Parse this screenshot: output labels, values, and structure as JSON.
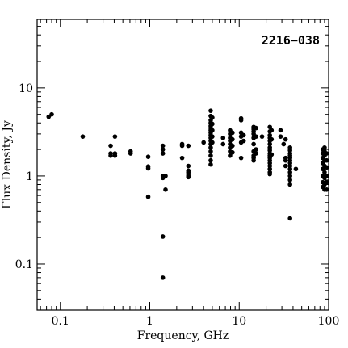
{
  "chart_data": {
    "type": "scatter",
    "title": "2216−038",
    "xlabel": "Frequency, GHz",
    "ylabel": "Flux Density, Jy",
    "xscale": "log",
    "yscale": "log",
    "xlim": [
      0.055,
      100
    ],
    "ylim": [
      0.03,
      60
    ],
    "x_tick_labels": [
      "0.1",
      "1",
      "10",
      "100"
    ],
    "y_tick_labels": [
      "0.1",
      "1",
      "10"
    ],
    "grid": false,
    "marker_color": "#000000",
    "series": [
      {
        "points": [
          [
            0.074,
            4.7
          ],
          [
            0.08,
            5.0
          ],
          [
            0.178,
            2.8
          ],
          [
            0.365,
            2.2
          ],
          [
            0.365,
            1.8
          ],
          [
            0.365,
            1.7
          ],
          [
            0.408,
            2.8
          ],
          [
            0.408,
            1.8
          ],
          [
            0.408,
            1.7
          ],
          [
            0.61,
            1.9
          ],
          [
            0.61,
            1.8
          ],
          [
            0.96,
            1.65
          ],
          [
            0.96,
            1.28
          ],
          [
            0.96,
            1.22
          ],
          [
            0.96,
            0.58
          ],
          [
            1.4,
            2.2
          ],
          [
            1.4,
            2.0
          ],
          [
            1.4,
            1.8
          ],
          [
            1.4,
            1.0
          ],
          [
            1.4,
            0.95
          ],
          [
            1.4,
            0.205
          ],
          [
            1.4,
            0.07
          ],
          [
            1.5,
            1.0
          ],
          [
            1.5,
            0.7
          ],
          [
            2.3,
            2.3
          ],
          [
            2.3,
            2.2
          ],
          [
            2.3,
            1.6
          ],
          [
            2.7,
            2.2
          ],
          [
            2.7,
            1.3
          ],
          [
            2.7,
            1.15
          ],
          [
            2.7,
            1.1
          ],
          [
            2.7,
            1.05
          ],
          [
            2.7,
            1.0
          ],
          [
            2.7,
            0.97
          ],
          [
            4.0,
            2.4
          ],
          [
            4.8,
            5.5
          ],
          [
            4.8,
            4.8
          ],
          [
            4.8,
            4.3
          ],
          [
            4.8,
            4.0
          ],
          [
            4.8,
            3.7
          ],
          [
            4.8,
            3.5
          ],
          [
            4.8,
            3.3
          ],
          [
            4.8,
            3.1
          ],
          [
            4.8,
            2.9
          ],
          [
            4.8,
            2.7
          ],
          [
            4.8,
            2.5
          ],
          [
            4.8,
            2.3
          ],
          [
            4.8,
            2.1
          ],
          [
            4.8,
            1.9
          ],
          [
            4.8,
            1.7
          ],
          [
            4.8,
            1.5
          ],
          [
            4.8,
            1.35
          ],
          [
            5.0,
            4.6
          ],
          [
            5.0,
            3.9
          ],
          [
            5.0,
            3.3
          ],
          [
            5.0,
            2.8
          ],
          [
            5.0,
            2.4
          ],
          [
            6.6,
            2.7
          ],
          [
            6.6,
            2.3
          ],
          [
            7.9,
            3.3
          ],
          [
            7.9,
            3.0
          ],
          [
            7.9,
            2.7
          ],
          [
            7.9,
            2.5
          ],
          [
            7.9,
            2.3
          ],
          [
            7.9,
            2.1
          ],
          [
            7.9,
            1.9
          ],
          [
            7.9,
            1.7
          ],
          [
            8.4,
            3.1
          ],
          [
            8.4,
            2.6
          ],
          [
            8.4,
            2.2
          ],
          [
            8.4,
            1.85
          ],
          [
            10.5,
            4.5
          ],
          [
            10.5,
            4.3
          ],
          [
            10.5,
            3.1
          ],
          [
            10.5,
            2.8
          ],
          [
            10.5,
            2.4
          ],
          [
            10.5,
            1.6
          ],
          [
            11.2,
            2.9
          ],
          [
            11.2,
            2.5
          ],
          [
            14.5,
            3.6
          ],
          [
            14.5,
            3.4
          ],
          [
            14.5,
            3.2
          ],
          [
            14.5,
            3.0
          ],
          [
            14.5,
            2.7
          ],
          [
            14.5,
            2.3
          ],
          [
            14.5,
            1.9
          ],
          [
            14.5,
            1.7
          ],
          [
            14.5,
            1.6
          ],
          [
            14.5,
            1.5
          ],
          [
            15.4,
            3.5
          ],
          [
            15.4,
            2.8
          ],
          [
            15.4,
            2.0
          ],
          [
            15.4,
            1.8
          ],
          [
            18.0,
            2.8
          ],
          [
            22.0,
            3.6
          ],
          [
            22.0,
            3.2
          ],
          [
            22.0,
            2.9
          ],
          [
            22.0,
            2.7
          ],
          [
            22.0,
            2.5
          ],
          [
            22.0,
            2.3
          ],
          [
            22.0,
            2.1
          ],
          [
            22.0,
            1.95
          ],
          [
            22.0,
            1.8
          ],
          [
            22.0,
            1.7
          ],
          [
            22.0,
            1.6
          ],
          [
            22.0,
            1.5
          ],
          [
            22.0,
            1.4
          ],
          [
            22.0,
            1.3
          ],
          [
            22.0,
            1.2
          ],
          [
            22.0,
            1.1
          ],
          [
            22.0,
            1.05
          ],
          [
            23.0,
            3.3
          ],
          [
            23.0,
            2.6
          ],
          [
            23.0,
            1.75
          ],
          [
            29.0,
            3.3
          ],
          [
            29.0,
            2.8
          ],
          [
            31.4,
            2.3
          ],
          [
            33.0,
            2.6
          ],
          [
            33.0,
            1.6
          ],
          [
            33.0,
            1.5
          ],
          [
            33.0,
            1.3
          ],
          [
            37.0,
            2.1
          ],
          [
            37.0,
            1.95
          ],
          [
            37.0,
            1.8
          ],
          [
            37.0,
            1.7
          ],
          [
            37.0,
            1.6
          ],
          [
            37.0,
            1.5
          ],
          [
            37.0,
            1.4
          ],
          [
            37.0,
            1.3
          ],
          [
            37.0,
            1.2
          ],
          [
            37.0,
            1.1
          ],
          [
            37.0,
            1.0
          ],
          [
            37.0,
            0.9
          ],
          [
            37.0,
            0.8
          ],
          [
            37.0,
            0.33
          ],
          [
            43.0,
            1.2
          ],
          [
            86.0,
            2.0
          ],
          [
            86.0,
            1.8
          ],
          [
            86.0,
            1.6
          ],
          [
            86.0,
            1.4
          ],
          [
            86.0,
            1.2
          ],
          [
            86.0,
            1.0
          ],
          [
            86.0,
            0.85
          ],
          [
            86.0,
            0.75
          ],
          [
            90.0,
            2.1
          ],
          [
            90.0,
            1.9
          ],
          [
            90.0,
            1.7
          ],
          [
            90.0,
            1.5
          ],
          [
            90.0,
            1.3
          ],
          [
            90.0,
            1.1
          ],
          [
            90.0,
            0.95
          ],
          [
            90.0,
            0.8
          ],
          [
            90.0,
            0.7
          ],
          [
            95.0,
            1.8
          ],
          [
            95.0,
            1.5
          ],
          [
            95.0,
            1.25
          ],
          [
            95.0,
            1.0
          ],
          [
            95.0,
            0.85
          ],
          [
            95.0,
            0.7
          ]
        ]
      }
    ]
  }
}
